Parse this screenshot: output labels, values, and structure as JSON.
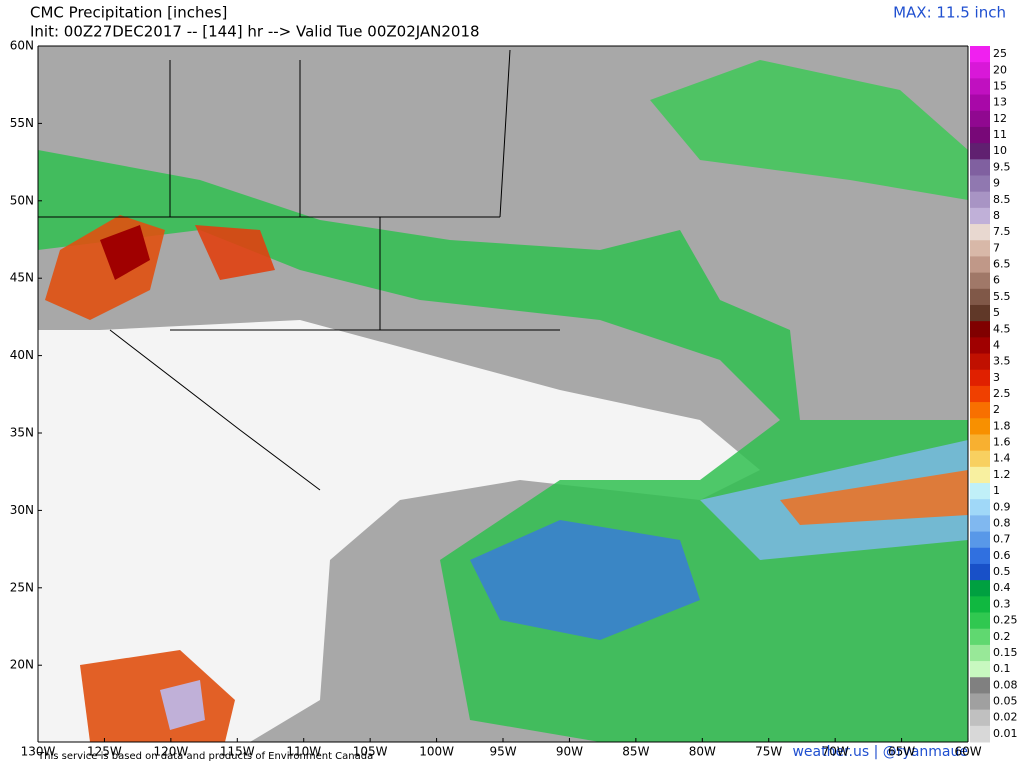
{
  "header": {
    "title": "CMC Precipitation [inches]",
    "subtitle": "Init: 00Z27DEC2017 -- [144] hr --> Valid Tue 00Z02JAN2018",
    "max": "MAX: 11.5 inch"
  },
  "lat_labels": [
    "60N",
    "55N",
    "50N",
    "45N",
    "40N",
    "35N",
    "30N",
    "25N",
    "20N"
  ],
  "lon_labels": [
    "130W",
    "125W",
    "120W",
    "115W",
    "110W",
    "105W",
    "100W",
    "95W",
    "90W",
    "85W",
    "80W",
    "75W",
    "70W",
    "65W",
    "60W"
  ],
  "legend": [
    {
      "label": "25",
      "color": "#f020f0"
    },
    {
      "label": "20",
      "color": "#d818d8"
    },
    {
      "label": "15",
      "color": "#c010c0"
    },
    {
      "label": "13",
      "color": "#a808a8"
    },
    {
      "label": "12",
      "color": "#900890"
    },
    {
      "label": "11",
      "color": "#780878"
    },
    {
      "label": "10",
      "color": "#602070"
    },
    {
      "label": "9.5",
      "color": "#8060a0"
    },
    {
      "label": "9",
      "color": "#9078b0"
    },
    {
      "label": "8.5",
      "color": "#a894c4"
    },
    {
      "label": "8",
      "color": "#c0b0d8"
    },
    {
      "label": "7.5",
      "color": "#e8d8d0"
    },
    {
      "label": "7",
      "color": "#d8b8a8"
    },
    {
      "label": "6.5",
      "color": "#c09888"
    },
    {
      "label": "6",
      "color": "#a07868"
    },
    {
      "label": "5.5",
      "color": "#805848"
    },
    {
      "label": "5",
      "color": "#603828"
    },
    {
      "label": "4.5",
      "color": "#800000"
    },
    {
      "label": "4",
      "color": "#a00000"
    },
    {
      "label": "3.5",
      "color": "#c01000"
    },
    {
      "label": "3",
      "color": "#e02000"
    },
    {
      "label": "2.5",
      "color": "#f04000"
    },
    {
      "label": "2",
      "color": "#f87000"
    },
    {
      "label": "1.8",
      "color": "#f89000"
    },
    {
      "label": "1.6",
      "color": "#f8b030"
    },
    {
      "label": "1.4",
      "color": "#f8d060"
    },
    {
      "label": "1.2",
      "color": "#f8f0a0"
    },
    {
      "label": "1",
      "color": "#c0f0f8"
    },
    {
      "label": "0.9",
      "color": "#a0d8f8"
    },
    {
      "label": "0.8",
      "color": "#80b8f0"
    },
    {
      "label": "0.7",
      "color": "#5898e8"
    },
    {
      "label": "0.6",
      "color": "#3070e0"
    },
    {
      "label": "0.5",
      "color": "#1850c8"
    },
    {
      "label": "0.4",
      "color": "#00a040"
    },
    {
      "label": "0.3",
      "color": "#10b840"
    },
    {
      "label": "0.25",
      "color": "#30c850"
    },
    {
      "label": "0.2",
      "color": "#60d870"
    },
    {
      "label": "0.15",
      "color": "#98e898"
    },
    {
      "label": "0.1",
      "color": "#c8f8c0"
    },
    {
      "label": "0.08",
      "color": "#808080"
    },
    {
      "label": "0.05",
      "color": "#a0a0a0"
    },
    {
      "label": "0.02",
      "color": "#c0c0c0"
    },
    {
      "label": "0.01",
      "color": "#d8d8d8"
    }
  ],
  "footer": {
    "credit": "This service is based on data and products of Environment Canada",
    "site": "weather.us | @ryanmaue"
  }
}
